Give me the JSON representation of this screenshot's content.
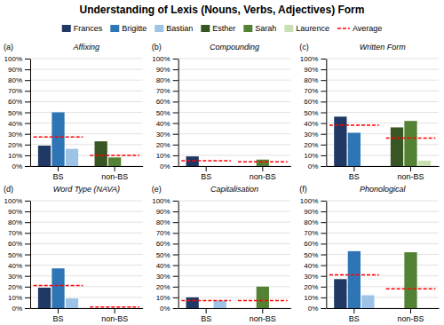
{
  "title": "Understanding of Lexis (Nouns, Verbs, Adjectives) Form",
  "legend": "top",
  "chart_data": [
    {
      "type": "bar",
      "title": "Affixing",
      "annotations": [
        "(a)"
      ],
      "categories": [
        "BS",
        "non-BS"
      ],
      "series": [
        {
          "name": "Frances",
          "color": "#1F3864",
          "values": [
            0.19,
            null
          ]
        },
        {
          "name": "Brigitte",
          "color": "#2E75B6",
          "values": [
            0.5,
            null
          ]
        },
        {
          "name": "Bastian",
          "color": "#9DC3E6",
          "values": [
            0.16,
            null
          ]
        },
        {
          "name": "Esther",
          "color": "#375623",
          "values": [
            null,
            0.23
          ]
        },
        {
          "name": "Sarah",
          "color": "#548235",
          "values": [
            null,
            0.08
          ]
        },
        {
          "name": "Laurence",
          "color": "#C9E0B3",
          "values": [
            null,
            0.0
          ]
        },
        {
          "name": "Average",
          "color": "#FF0000",
          "type": "line",
          "line_style": "dashed",
          "values": [
            0.27,
            0.1
          ]
        }
      ],
      "ylim": [
        0,
        1.0
      ],
      "yticks": [
        {
          "value": 0,
          "label": "0%"
        },
        {
          "value": 0.1,
          "label": "10%"
        },
        {
          "value": 0.2,
          "label": "20%"
        },
        {
          "value": 0.3,
          "label": "30%"
        },
        {
          "value": 0.4,
          "label": "40%"
        },
        {
          "value": 0.5,
          "label": "50%"
        },
        {
          "value": 0.6,
          "label": "60%"
        },
        {
          "value": 0.7,
          "label": "70%"
        },
        {
          "value": 0.8,
          "label": "80%"
        },
        {
          "value": 0.9,
          "label": "90%"
        },
        {
          "value": 1.0,
          "label": "100%"
        }
      ],
      "grid": true
    },
    {
      "type": "bar",
      "title": "Compounding",
      "annotations": [
        "(b)"
      ],
      "categories": [
        "BS",
        "non-BS"
      ],
      "series": [
        {
          "name": "Frances",
          "color": "#1F3864",
          "values": [
            0.09,
            null
          ]
        },
        {
          "name": "Brigitte",
          "color": "#2E75B6",
          "values": [
            0.0,
            null
          ]
        },
        {
          "name": "Bastian",
          "color": "#9DC3E6",
          "values": [
            0.0,
            null
          ]
        },
        {
          "name": "Esther",
          "color": "#375623",
          "values": [
            null,
            0.0
          ]
        },
        {
          "name": "Sarah",
          "color": "#548235",
          "values": [
            null,
            0.06
          ]
        },
        {
          "name": "Laurence",
          "color": "#C9E0B3",
          "values": [
            null,
            0.0
          ]
        },
        {
          "name": "Average",
          "color": "#FF0000",
          "type": "line",
          "line_style": "dashed",
          "values": [
            0.05,
            0.04
          ]
        }
      ],
      "ylim": [
        0,
        1.0
      ],
      "yticks": [
        {
          "value": 0,
          "label": "0%"
        },
        {
          "value": 0.1,
          "label": "10%"
        },
        {
          "value": 0.2,
          "label": "20%"
        },
        {
          "value": 0.3,
          "label": "30%"
        },
        {
          "value": 0.4,
          "label": "40%"
        },
        {
          "value": 0.5,
          "label": "50%"
        },
        {
          "value": 0.6,
          "label": "60%"
        },
        {
          "value": 0.7,
          "label": "70%"
        },
        {
          "value": 0.8,
          "label": "80%"
        },
        {
          "value": 0.9,
          "label": "90%"
        },
        {
          "value": 1.0,
          "label": "100%"
        }
      ],
      "grid": true
    },
    {
      "type": "bar",
      "title": "Written Form",
      "annotations": [
        "(c)"
      ],
      "categories": [
        "BS",
        "non-BS"
      ],
      "series": [
        {
          "name": "Frances",
          "color": "#1F3864",
          "values": [
            0.46,
            null
          ]
        },
        {
          "name": "Brigitte",
          "color": "#2E75B6",
          "values": [
            0.31,
            null
          ]
        },
        {
          "name": "Bastian",
          "color": "#9DC3E6",
          "values": [
            0.0,
            null
          ]
        },
        {
          "name": "Esther",
          "color": "#375623",
          "values": [
            null,
            0.36
          ]
        },
        {
          "name": "Sarah",
          "color": "#548235",
          "values": [
            null,
            0.42
          ]
        },
        {
          "name": "Laurence",
          "color": "#C9E0B3",
          "values": [
            null,
            0.05
          ]
        },
        {
          "name": "Average",
          "color": "#FF0000",
          "type": "line",
          "line_style": "dashed",
          "values": [
            0.38,
            0.26
          ]
        }
      ],
      "ylim": [
        0,
        1.0
      ],
      "yticks": [
        {
          "value": 0,
          "label": "0%"
        },
        {
          "value": 0.1,
          "label": "10%"
        },
        {
          "value": 0.2,
          "label": "20%"
        },
        {
          "value": 0.3,
          "label": "30%"
        },
        {
          "value": 0.4,
          "label": "40%"
        },
        {
          "value": 0.5,
          "label": "50%"
        },
        {
          "value": 0.6,
          "label": "60%"
        },
        {
          "value": 0.7,
          "label": "70%"
        },
        {
          "value": 0.8,
          "label": "80%"
        },
        {
          "value": 0.9,
          "label": "90%"
        },
        {
          "value": 1.0,
          "label": "100%"
        }
      ],
      "grid": true
    },
    {
      "type": "bar",
      "title": "Word Type (NAVA)",
      "annotations": [
        "(d)"
      ],
      "categories": [
        "BS",
        "non-BS"
      ],
      "series": [
        {
          "name": "Frances",
          "color": "#1F3864",
          "values": [
            0.19,
            null
          ]
        },
        {
          "name": "Brigitte",
          "color": "#2E75B6",
          "values": [
            0.37,
            null
          ]
        },
        {
          "name": "Bastian",
          "color": "#9DC3E6",
          "values": [
            0.09,
            null
          ]
        },
        {
          "name": "Esther",
          "color": "#375623",
          "values": [
            null,
            0.0
          ]
        },
        {
          "name": "Sarah",
          "color": "#548235",
          "values": [
            null,
            0.0
          ]
        },
        {
          "name": "Laurence",
          "color": "#C9E0B3",
          "values": [
            null,
            0.0
          ]
        },
        {
          "name": "Average",
          "color": "#FF0000",
          "type": "line",
          "line_style": "dashed",
          "values": [
            0.21,
            0.01
          ]
        }
      ],
      "ylim": [
        0,
        1.0
      ],
      "yticks": [
        {
          "value": 0,
          "label": "0%"
        },
        {
          "value": 0.1,
          "label": "10%"
        },
        {
          "value": 0.2,
          "label": "20%"
        },
        {
          "value": 0.3,
          "label": "30%"
        },
        {
          "value": 0.4,
          "label": "40%"
        },
        {
          "value": 0.5,
          "label": "50%"
        },
        {
          "value": 0.6,
          "label": "60%"
        },
        {
          "value": 0.7,
          "label": "70%"
        },
        {
          "value": 0.8,
          "label": "80%"
        },
        {
          "value": 0.9,
          "label": "90%"
        },
        {
          "value": 1.0,
          "label": "100%"
        }
      ],
      "grid": true
    },
    {
      "type": "bar",
      "title": "Capitalisation",
      "annotations": [
        "(e)"
      ],
      "categories": [
        "BS",
        "non-BS"
      ],
      "series": [
        {
          "name": "Frances",
          "color": "#1F3864",
          "values": [
            0.1,
            null
          ]
        },
        {
          "name": "Brigitte",
          "color": "#2E75B6",
          "values": [
            0.0,
            null
          ]
        },
        {
          "name": "Bastian",
          "color": "#9DC3E6",
          "values": [
            0.07,
            null
          ]
        },
        {
          "name": "Esther",
          "color": "#375623",
          "values": [
            null,
            0.0
          ]
        },
        {
          "name": "Sarah",
          "color": "#548235",
          "values": [
            null,
            0.2
          ]
        },
        {
          "name": "Laurence",
          "color": "#C9E0B3",
          "values": [
            null,
            0.0
          ]
        },
        {
          "name": "Average",
          "color": "#FF0000",
          "type": "line",
          "line_style": "dashed",
          "values": [
            0.07,
            0.07
          ]
        }
      ],
      "ylim": [
        0,
        1.0
      ],
      "yticks": [
        {
          "value": 0,
          "label": "0%"
        },
        {
          "value": 0.1,
          "label": "10%"
        },
        {
          "value": 0.2,
          "label": "20%"
        },
        {
          "value": 0.3,
          "label": "30%"
        },
        {
          "value": 0.4,
          "label": "40%"
        },
        {
          "value": 0.5,
          "label": "50%"
        },
        {
          "value": 0.6,
          "label": "60%"
        },
        {
          "value": 0.7,
          "label": "70%"
        },
        {
          "value": 0.8,
          "label": "80%"
        },
        {
          "value": 0.9,
          "label": "90%"
        },
        {
          "value": 1.0,
          "label": "100%"
        }
      ],
      "grid": true
    },
    {
      "type": "bar",
      "title": "Phonological",
      "annotations": [
        "(f)"
      ],
      "categories": [
        "BS",
        "non-BS"
      ],
      "series": [
        {
          "name": "Frances",
          "color": "#1F3864",
          "values": [
            0.27,
            null
          ]
        },
        {
          "name": "Brigitte",
          "color": "#2E75B6",
          "values": [
            0.53,
            null
          ]
        },
        {
          "name": "Bastian",
          "color": "#9DC3E6",
          "values": [
            0.12,
            null
          ]
        },
        {
          "name": "Esther",
          "color": "#375623",
          "values": [
            null,
            0.0
          ]
        },
        {
          "name": "Sarah",
          "color": "#548235",
          "values": [
            null,
            0.52
          ]
        },
        {
          "name": "Laurence",
          "color": "#C9E0B3",
          "values": [
            null,
            0.0
          ]
        },
        {
          "name": "Average",
          "color": "#FF0000",
          "type": "line",
          "line_style": "dashed",
          "values": [
            0.31,
            0.18
          ]
        }
      ],
      "ylim": [
        0,
        1.0
      ],
      "yticks": [
        {
          "value": 0,
          "label": "0%"
        },
        {
          "value": 0.1,
          "label": "10%"
        },
        {
          "value": 0.2,
          "label": "20%"
        },
        {
          "value": 0.3,
          "label": "30%"
        },
        {
          "value": 0.4,
          "label": "40%"
        },
        {
          "value": 0.5,
          "label": "50%"
        },
        {
          "value": 0.6,
          "label": "60%"
        },
        {
          "value": 0.7,
          "label": "70%"
        },
        {
          "value": 0.8,
          "label": "80%"
        },
        {
          "value": 0.9,
          "label": "90%"
        },
        {
          "value": 1.0,
          "label": "100%"
        }
      ],
      "grid": true
    }
  ]
}
